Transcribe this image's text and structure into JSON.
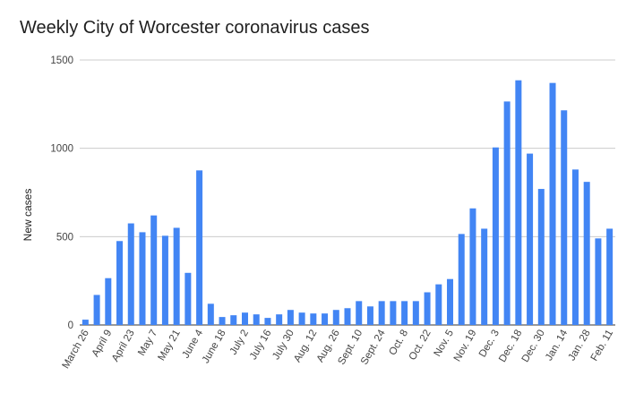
{
  "chart_data": {
    "type": "bar",
    "title": "Weekly City of Worcester coronavirus cases",
    "xlabel": "",
    "ylabel": "New cases",
    "ylim": [
      0,
      1500
    ],
    "yticks": [
      0,
      500,
      1000,
      1500
    ],
    "grid": true,
    "legend": "none",
    "bar_color": "#4285f4",
    "categories": [
      "March 26",
      "",
      "April 9",
      "",
      "April 23",
      "",
      "May 7",
      "",
      "May 21",
      "",
      "June 4",
      "",
      "June 18",
      "",
      "July 2",
      "",
      "July 16",
      "",
      "July 30",
      "",
      "Aug. 12",
      "",
      "Aug. 26",
      "",
      "Sept. 10",
      "",
      "Sept. 24",
      "",
      "Oct. 8",
      "",
      "Oct. 22",
      "",
      "Nov. 5",
      "",
      "Nov. 19",
      "",
      "Dec. 3",
      "",
      "Dec. 18",
      "",
      "Dec. 30",
      "",
      "Jan. 14",
      "",
      "Jan. 28",
      "",
      "Feb. 11"
    ],
    "values": [
      30,
      170,
      265,
      475,
      575,
      525,
      620,
      505,
      550,
      295,
      875,
      120,
      45,
      55,
      70,
      60,
      40,
      60,
      85,
      70,
      65,
      65,
      85,
      95,
      135,
      105,
      135,
      135,
      135,
      135,
      185,
      230,
      260,
      515,
      660,
      545,
      1005,
      1265,
      1385,
      970,
      770,
      1370,
      1215,
      880,
      810,
      490,
      545
    ]
  }
}
